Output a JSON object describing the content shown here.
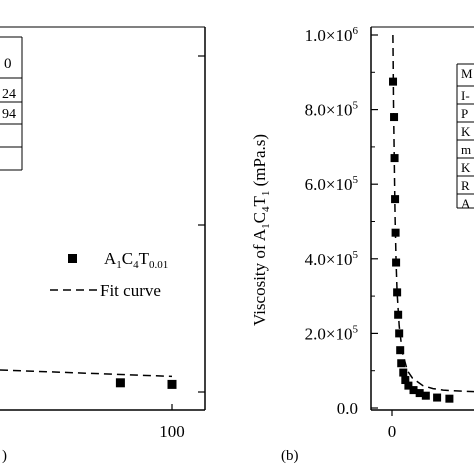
{
  "chart_data": [
    {
      "panel": "a",
      "type": "scatter",
      "x_tick_labels": [
        "100"
      ],
      "x_label_fragment": ")",
      "legend": {
        "series_main": "A",
        "series_sub1": "1",
        "series_mid": "C",
        "series_sub2": "4",
        "series_end": "T",
        "series_sub3": "0.01",
        "fit_label": "Fit curve"
      },
      "inset_table_fragments": [
        "0",
        "24",
        "94"
      ],
      "series": [
        {
          "x": [
            70,
            100
          ],
          "y": [
            0.17,
            0.16
          ]
        }
      ],
      "fit_curve": {
        "x": [
          0,
          100
        ],
        "y": [
          0.25,
          0.21
        ]
      }
    },
    {
      "panel": "b",
      "type": "scatter",
      "panel_label": "(b)",
      "y_tick_labels": [
        {
          "mant": "1.0",
          "exp": "6"
        },
        {
          "mant": "8.0",
          "exp": "5"
        },
        {
          "mant": "6.0",
          "exp": "5"
        },
        {
          "mant": "4.0",
          "exp": "5"
        },
        {
          "mant": "2.0",
          "exp": "5"
        },
        {
          "mant": "0.0",
          "exp": ""
        }
      ],
      "y_ticks_values": [
        1000000,
        800000,
        600000,
        400000,
        200000,
        0
      ],
      "x_tick_labels": [
        "0"
      ],
      "ylim": [
        0,
        1000000
      ],
      "ylabel": {
        "pre": "Viscosity of A",
        "s1": "1",
        "m1": "C",
        "s2": "4",
        "m2": "T",
        "s3": "1",
        "post": " (mPa.s)"
      },
      "inset_table_fragments": [
        "M",
        "I-",
        "P",
        "K",
        "m",
        "K",
        "R",
        "A"
      ],
      "series": [
        {
          "x": [
            0.1,
            0.2,
            0.25,
            0.3,
            0.35,
            0.4,
            0.5,
            0.6,
            0.7,
            0.8,
            0.9,
            1.1,
            1.3,
            1.6,
            2.1,
            2.7,
            3.3,
            4.4,
            5.6
          ],
          "y": [
            875000,
            780000,
            670000,
            560000,
            470000,
            390000,
            310000,
            250000,
            200000,
            155000,
            120000,
            95000,
            75000,
            60000,
            48000,
            40000,
            33000,
            28000,
            25000
          ]
        }
      ],
      "fit_curve": {
        "x": [
          0.09,
          0.12,
          0.15,
          0.2,
          0.25,
          0.3,
          0.4,
          0.5,
          0.7,
          1,
          1.5,
          2,
          3,
          4,
          5,
          6,
          7,
          8
        ],
        "y": [
          1000000,
          920000,
          820000,
          700000,
          600000,
          510000,
          390000,
          310000,
          220000,
          150000,
          100000,
          80000,
          60000,
          52000,
          48000,
          46000,
          45000,
          44000
        ]
      }
    }
  ]
}
